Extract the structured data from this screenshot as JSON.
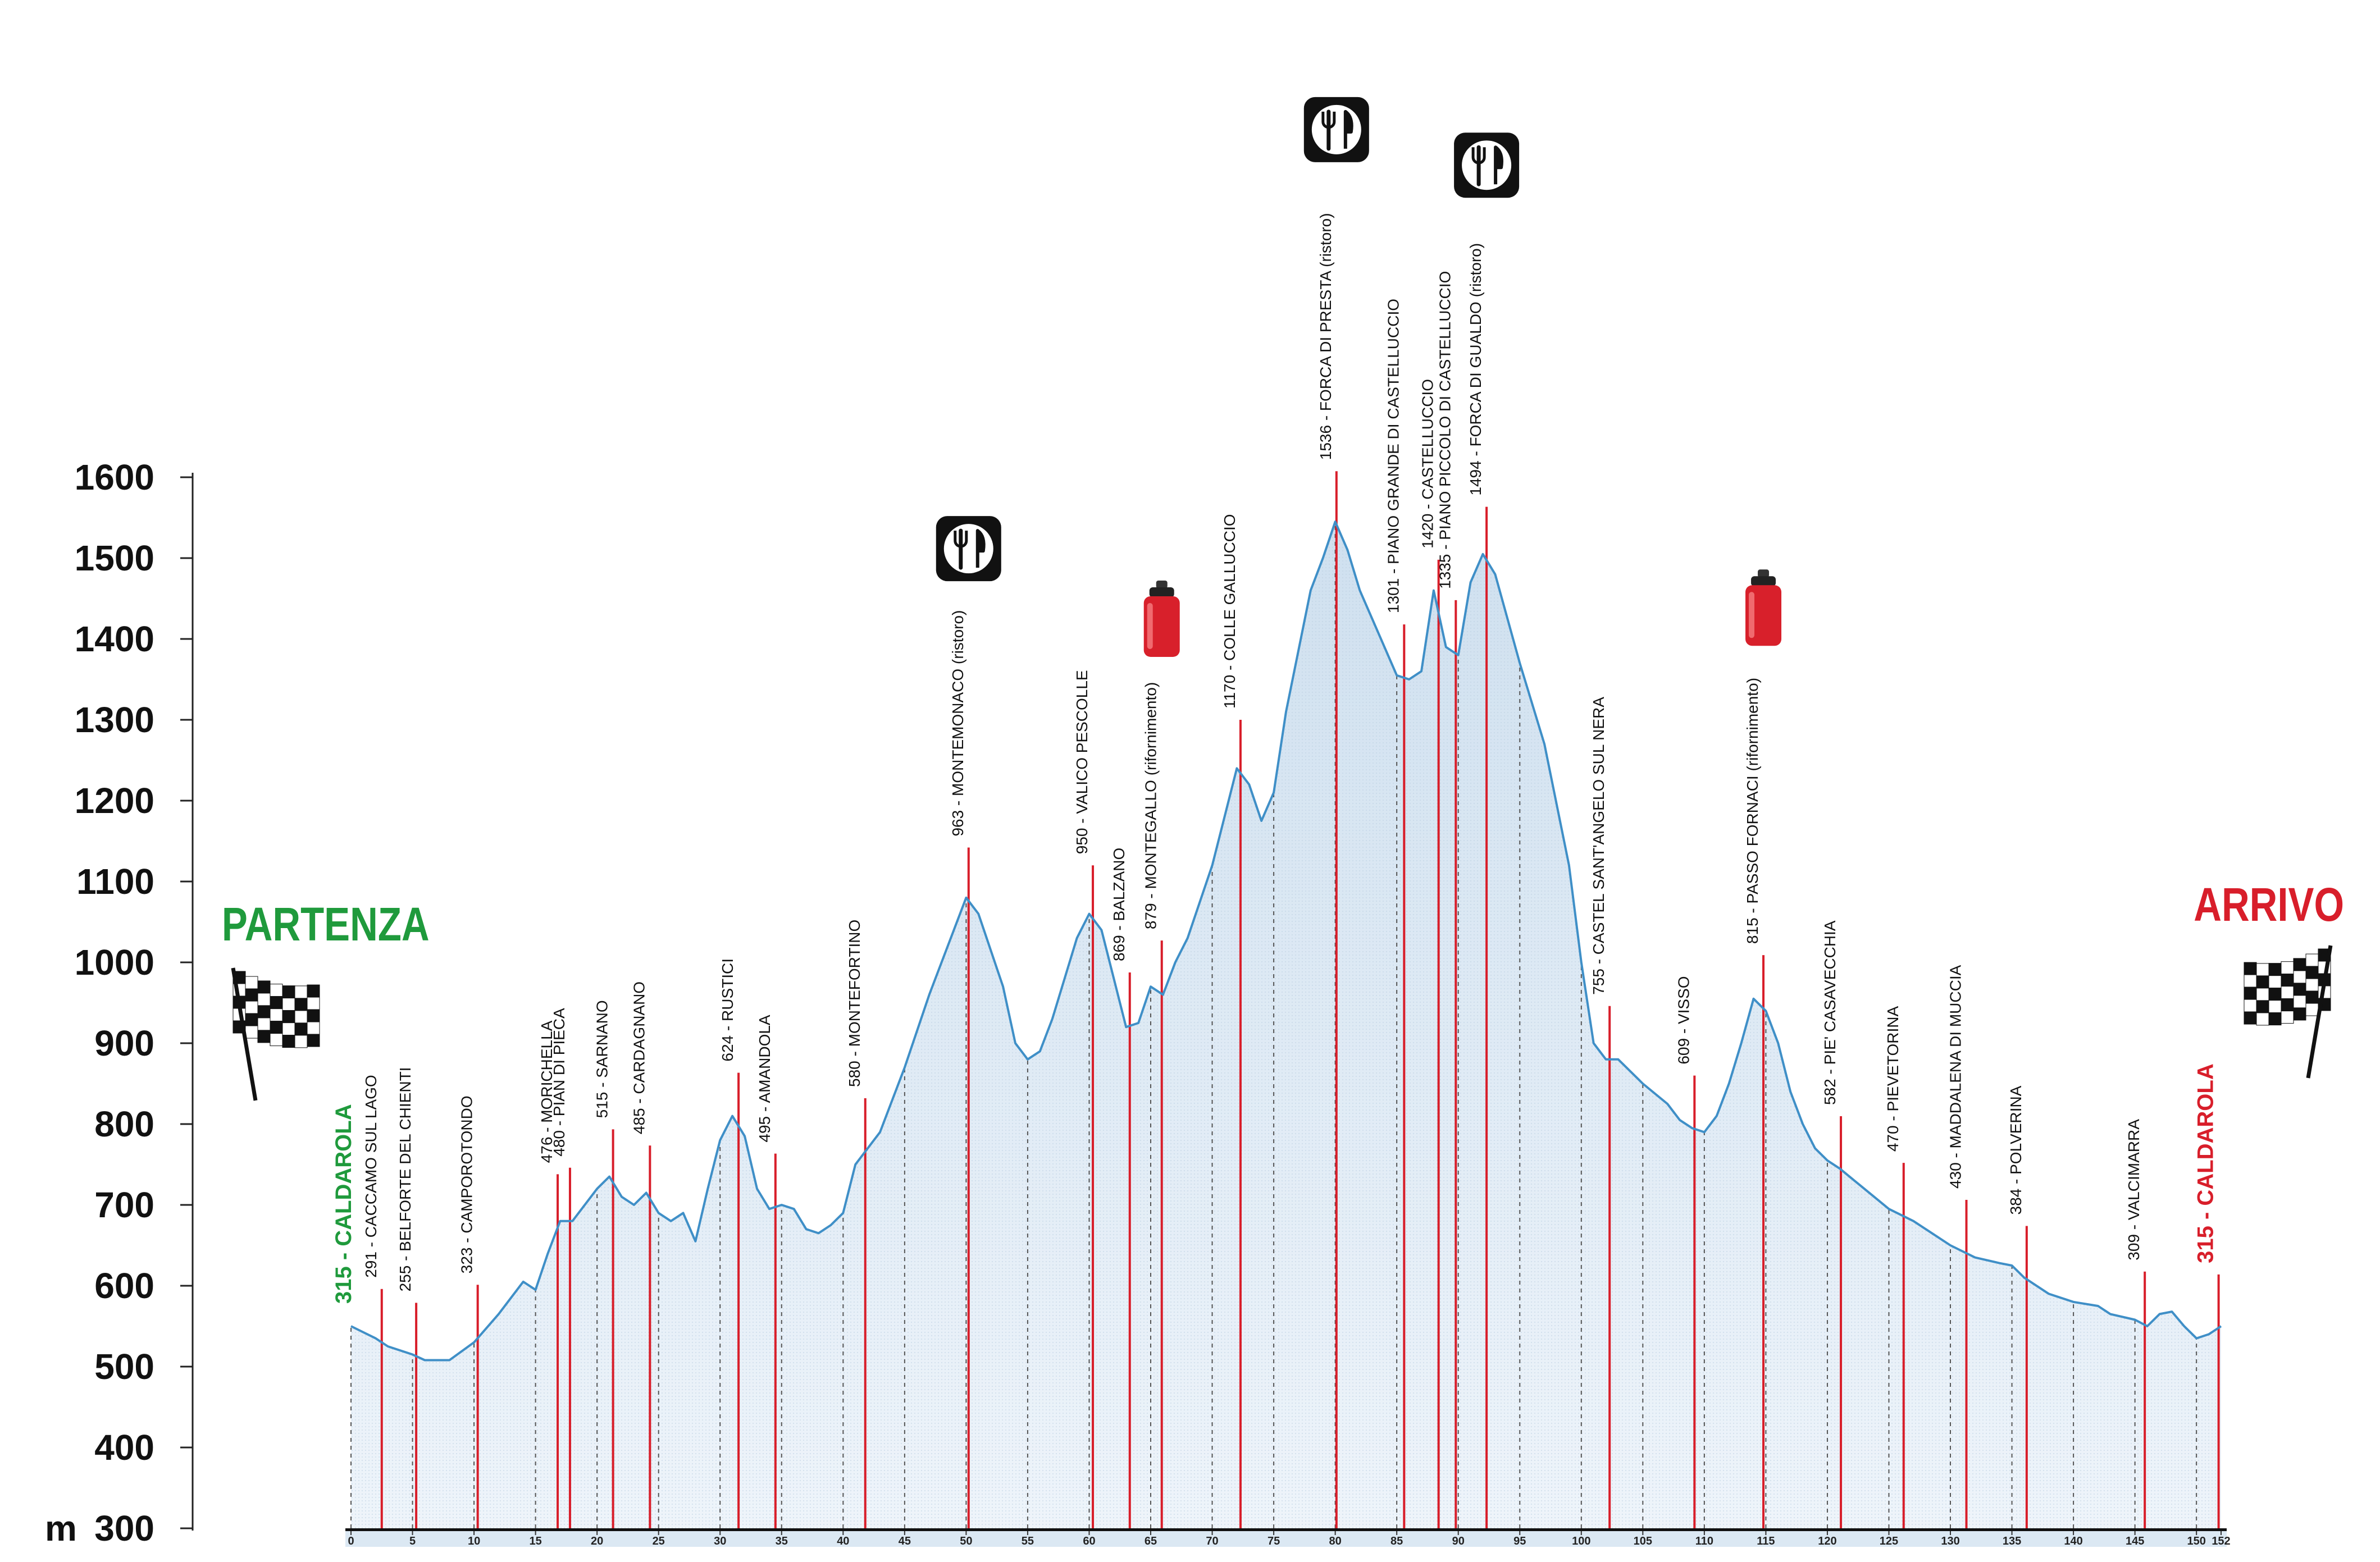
{
  "chart_data": {
    "type": "area",
    "ylabel_prefix": "m",
    "ylim": [
      300,
      1600
    ],
    "yticks": [
      300,
      400,
      500,
      600,
      700,
      800,
      900,
      1000,
      1100,
      1200,
      1300,
      1400,
      1500,
      1600
    ],
    "xlim": [
      0,
      152
    ],
    "xticks": [
      0,
      5,
      10,
      15,
      20,
      25,
      30,
      35,
      40,
      45,
      50,
      55,
      60,
      65,
      70,
      75,
      80,
      85,
      90,
      95,
      100,
      105,
      110,
      115,
      120,
      125,
      130,
      135,
      140,
      145,
      150,
      152
    ],
    "xtick_labels": [
      "0",
      "5",
      "10",
      "15",
      "20",
      "25",
      "30",
      "35",
      "40",
      "45",
      "50",
      "55",
      "60",
      "65",
      "70",
      "75",
      "80",
      "85",
      "90",
      "95",
      "100",
      "105",
      "110",
      "115",
      "120",
      "125",
      "130",
      "135",
      "140",
      "145",
      "150",
      "152"
    ],
    "start_label": "PARTENZA",
    "end_label": "ARRIVO",
    "colors": {
      "profile_line": "#3f8fc7",
      "area_top": "#cfe0ef",
      "area_bottom": "#eef4fa",
      "marker_line": "#d81e2a",
      "start": "#1f9a3c",
      "end": "#d81e2a",
      "text": "#111111"
    },
    "profile": [
      [
        0,
        550
      ],
      [
        2,
        535
      ],
      [
        3,
        525
      ],
      [
        5,
        515
      ],
      [
        6,
        508
      ],
      [
        8,
        508
      ],
      [
        10,
        530
      ],
      [
        12,
        565
      ],
      [
        14,
        605
      ],
      [
        15,
        595
      ],
      [
        16,
        640
      ],
      [
        17,
        680
      ],
      [
        18,
        680
      ],
      [
        20,
        720
      ],
      [
        21,
        735
      ],
      [
        22,
        710
      ],
      [
        23,
        700
      ],
      [
        24,
        715
      ],
      [
        25,
        690
      ],
      [
        26,
        680
      ],
      [
        27,
        690
      ],
      [
        28,
        655
      ],
      [
        29,
        720
      ],
      [
        30,
        780
      ],
      [
        31,
        810
      ],
      [
        32,
        785
      ],
      [
        33,
        720
      ],
      [
        34,
        695
      ],
      [
        35,
        700
      ],
      [
        36,
        695
      ],
      [
        37,
        670
      ],
      [
        38,
        665
      ],
      [
        39,
        675
      ],
      [
        40,
        690
      ],
      [
        41,
        750
      ],
      [
        42,
        770
      ],
      [
        43,
        790
      ],
      [
        45,
        870
      ],
      [
        47,
        960
      ],
      [
        49,
        1040
      ],
      [
        50,
        1080
      ],
      [
        51,
        1060
      ],
      [
        53,
        970
      ],
      [
        54,
        900
      ],
      [
        55,
        880
      ],
      [
        56,
        890
      ],
      [
        57,
        930
      ],
      [
        59,
        1030
      ],
      [
        60,
        1060
      ],
      [
        61,
        1040
      ],
      [
        62,
        980
      ],
      [
        63,
        920
      ],
      [
        64,
        925
      ],
      [
        65,
        970
      ],
      [
        66,
        960
      ],
      [
        67,
        1000
      ],
      [
        68,
        1030
      ],
      [
        70,
        1120
      ],
      [
        72,
        1240
      ],
      [
        73,
        1220
      ],
      [
        74,
        1175
      ],
      [
        75,
        1210
      ],
      [
        76,
        1310
      ],
      [
        78,
        1460
      ],
      [
        79,
        1500
      ],
      [
        80,
        1545
      ],
      [
        81,
        1510
      ],
      [
        82,
        1460
      ],
      [
        84,
        1390
      ],
      [
        85,
        1355
      ],
      [
        86,
        1350
      ],
      [
        87,
        1360
      ],
      [
        88,
        1460
      ],
      [
        89,
        1390
      ],
      [
        90,
        1380
      ],
      [
        91,
        1470
      ],
      [
        92,
        1505
      ],
      [
        93,
        1480
      ],
      [
        95,
        1370
      ],
      [
        97,
        1270
      ],
      [
        99,
        1120
      ],
      [
        100,
        1000
      ],
      [
        101,
        900
      ],
      [
        102,
        880
      ],
      [
        103,
        880
      ],
      [
        105,
        850
      ],
      [
        107,
        825
      ],
      [
        108,
        805
      ],
      [
        109,
        795
      ],
      [
        110,
        790
      ],
      [
        111,
        810
      ],
      [
        112,
        850
      ],
      [
        113,
        900
      ],
      [
        114,
        955
      ],
      [
        115,
        940
      ],
      [
        116,
        900
      ],
      [
        117,
        840
      ],
      [
        118,
        800
      ],
      [
        119,
        770
      ],
      [
        120,
        755
      ],
      [
        121,
        745
      ],
      [
        123,
        720
      ],
      [
        125,
        695
      ],
      [
        127,
        680
      ],
      [
        128,
        670
      ],
      [
        130,
        650
      ],
      [
        132,
        635
      ],
      [
        134,
        628
      ],
      [
        135,
        625
      ],
      [
        136,
        610
      ],
      [
        138,
        590
      ],
      [
        140,
        580
      ],
      [
        142,
        575
      ],
      [
        143,
        565
      ],
      [
        145,
        558
      ],
      [
        146,
        550
      ],
      [
        147,
        565
      ],
      [
        148,
        568
      ],
      [
        149,
        550
      ],
      [
        150,
        535
      ],
      [
        151,
        540
      ],
      [
        152,
        550
      ]
    ],
    "dashed_lines": [
      0,
      5,
      10,
      15,
      20,
      25,
      30,
      35,
      40,
      45,
      50,
      55,
      60,
      65,
      70,
      75,
      80,
      85,
      90,
      95,
      100,
      105,
      110,
      115,
      120,
      125,
      130,
      135,
      140,
      145,
      150
    ],
    "markers": [
      {
        "km": 0,
        "label": "315 - CALDAROLA",
        "kind": "start"
      },
      {
        "km": 2.5,
        "label": "291 - CACCAMO SUL LAGO"
      },
      {
        "km": 5.3,
        "label": "255 - BELFORTE DEL CHIENTI"
      },
      {
        "km": 10.3,
        "label": "323 - CAMPOROTONDO"
      },
      {
        "km": 16.8,
        "label": "476 - MORICHELLA"
      },
      {
        "km": 17.8,
        "label": "480 - PIAN DI PIECA"
      },
      {
        "km": 21.3,
        "label": "515 - SARNANO"
      },
      {
        "km": 24.3,
        "label": "485 - CARDAGNANO"
      },
      {
        "km": 31.5,
        "label": "624 - RUSTICI"
      },
      {
        "km": 34.5,
        "label": "495 - AMANDOLA"
      },
      {
        "km": 41.8,
        "label": "580 - MONTEFORTINO"
      },
      {
        "km": 50.2,
        "label": "963 - MONTEMONACO (ristoro)",
        "icon": "ristoro"
      },
      {
        "km": 60.3,
        "label": "950 - VALICO PESCOLLE"
      },
      {
        "km": 63.3,
        "label": "869 - BALZANO"
      },
      {
        "km": 65.9,
        "label": "879 - MONTEGALLO (rifornimento)",
        "icon": "rifornimento"
      },
      {
        "km": 72.3,
        "label": "1170 - COLLE GALLUCCIO"
      },
      {
        "km": 80.1,
        "label": "1536 - FORCA DI PRESTA (ristoro)",
        "icon": "ristoro"
      },
      {
        "km": 85.6,
        "label": "1301 - PIANO GRANDE DI CASTELLUCCIO"
      },
      {
        "km": 88.4,
        "label": "1420 - CASTELLUCCIO"
      },
      {
        "km": 89.8,
        "label": "1335 - PIANO PICCOLO DI CASTELLUCCIO"
      },
      {
        "km": 92.3,
        "label": "1494 - FORCA DI GUALDO (ristoro)",
        "icon": "ristoro"
      },
      {
        "km": 102.3,
        "label": "755 - CASTEL SANT'ANGELO SUL NERA"
      },
      {
        "km": 109.2,
        "label": "609 - VISSO"
      },
      {
        "km": 114.8,
        "label": "815 - PASSO FORNACI (rifornimento)",
        "icon": "rifornimento"
      },
      {
        "km": 121.1,
        "label": "582 - PIE' CASAVECCHIA"
      },
      {
        "km": 126.2,
        "label": "470 - PIEVETORINA"
      },
      {
        "km": 131.3,
        "label": "430 - MADDALENA DI MUCCIA"
      },
      {
        "km": 136.2,
        "label": "384 - POLVERINA"
      },
      {
        "km": 145.8,
        "label": "309 - VALCIMARRA"
      },
      {
        "km": 151.8,
        "label": "315 - CALDAROLA",
        "kind": "end"
      }
    ]
  }
}
